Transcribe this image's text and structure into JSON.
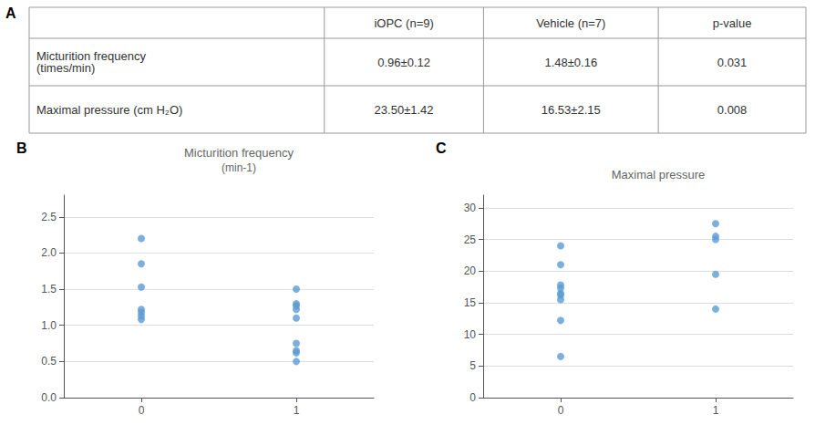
{
  "chart_data": [
    {
      "type": "table",
      "label": "A",
      "columns": [
        "iOPC (n=9)",
        "Vehicle (n=7)",
        "p-value"
      ],
      "rows": [
        {
          "label": "Micturition frequency\n(times/min)",
          "values": [
            "0.96±0.12",
            "1.48±0.16",
            "0.031"
          ]
        },
        {
          "label": "Maximal pressure (cm H₂O)",
          "values": [
            "23.50±1.42",
            "16.53±2.15",
            "0.008"
          ]
        }
      ]
    },
    {
      "type": "scatter",
      "label": "B",
      "title": "Micturition frequency",
      "subtitle": "(min-1)",
      "x": [
        0,
        0,
        0,
        0,
        0,
        0,
        0,
        1,
        1,
        1,
        1,
        1,
        1,
        1,
        1,
        1
      ],
      "values": [
        2.2,
        1.85,
        1.53,
        1.22,
        1.18,
        1.13,
        1.08,
        1.5,
        1.3,
        1.27,
        1.22,
        1.1,
        0.75,
        0.65,
        0.62,
        0.5
      ],
      "color": "#5B9BD5",
      "xlim": [
        -0.5,
        1.5
      ],
      "xticks": [
        0,
        1
      ],
      "ylim": [
        0,
        2.8
      ],
      "yticks": [
        {
          "value": 0,
          "label": "0.0"
        },
        0.5,
        {
          "value": 1.0,
          "label": "1.0"
        },
        1.5,
        {
          "value": 2.0,
          "label": "2.0"
        },
        2.5
      ],
      "grid": "y"
    },
    {
      "type": "scatter",
      "label": "C",
      "title": "Maximal pressure",
      "x": [
        0,
        0,
        0,
        0,
        0,
        0,
        0,
        0,
        0,
        1,
        1,
        1,
        1,
        1
      ],
      "values": [
        24.0,
        21.0,
        17.8,
        17.3,
        16.5,
        16.2,
        15.5,
        12.2,
        6.5,
        27.5,
        25.5,
        25.0,
        19.5,
        14.0
      ],
      "color": "#5B9BD5",
      "xlim": [
        -0.5,
        1.5
      ],
      "xticks": [
        0,
        1
      ],
      "ylim": [
        0,
        32
      ],
      "yticks": [
        0,
        5,
        10,
        15,
        20,
        25,
        30
      ],
      "grid": "y"
    }
  ]
}
